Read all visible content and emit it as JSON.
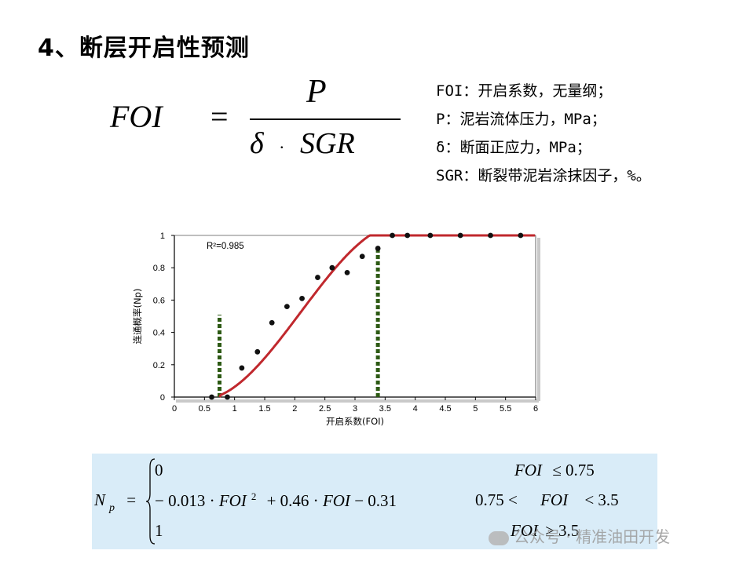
{
  "title": "4、断层开启性预测",
  "formula": {
    "lhs": "FOI",
    "equals": "=",
    "numerator": "P",
    "denominator_delta": "δ",
    "denominator_dot": "·",
    "denominator_sgr": "SGR"
  },
  "definitions": [
    "FOI：开启系数，无量纲；",
    "P：泥岩流体压力，MPa；",
    "δ：断面正应力，MPa；",
    "SGR：断裂带泥岩涂抹因子，%。"
  ],
  "chart_data": {
    "type": "scatter",
    "xlabel": "开启系数(FOI)",
    "ylabel": "连通概率(Np)",
    "annotation": "R²=0.985",
    "xlim": [
      0,
      6
    ],
    "ylim": [
      0,
      1
    ],
    "xticks": [
      "0",
      "0.5",
      "1",
      "1.5",
      "2",
      "2.5",
      "3",
      "3.5",
      "4",
      "4.5",
      "5",
      "5.5",
      "6"
    ],
    "yticks": [
      "0",
      "0.2",
      "0.4",
      "0.6",
      "0.8",
      "1"
    ],
    "points": [
      {
        "x": 0.62,
        "y": 0
      },
      {
        "x": 0.88,
        "y": 0
      },
      {
        "x": 1.12,
        "y": 0.18
      },
      {
        "x": 1.38,
        "y": 0.28
      },
      {
        "x": 1.62,
        "y": 0.46
      },
      {
        "x": 1.87,
        "y": 0.56
      },
      {
        "x": 2.12,
        "y": 0.61
      },
      {
        "x": 2.38,
        "y": 0.74
      },
      {
        "x": 2.62,
        "y": 0.8
      },
      {
        "x": 2.87,
        "y": 0.77
      },
      {
        "x": 3.12,
        "y": 0.87
      },
      {
        "x": 3.38,
        "y": 0.92
      },
      {
        "x": 3.62,
        "y": 1.0
      },
      {
        "x": 3.87,
        "y": 1.0
      },
      {
        "x": 4.25,
        "y": 1.0
      },
      {
        "x": 4.75,
        "y": 1.0
      },
      {
        "x": 5.25,
        "y": 1.0
      },
      {
        "x": 5.75,
        "y": 1.0
      }
    ],
    "thresholds": [
      {
        "x": 0.75,
        "y_top": 0.51
      },
      {
        "x": 3.38,
        "y_top": 0.93
      }
    ],
    "curve_color": "#c0282d",
    "point_color": "#111111",
    "threshold_color": "#2d5a14"
  },
  "conditions": {
    "lhs_N": "N",
    "lhs_sub": "p",
    "lhs_eq": "=",
    "case1_value": "0",
    "case1_cond_var": "FOI",
    "case1_cond": "≤ 0.75",
    "case2_value_prefix": "− 0.013 ·",
    "case2_var1": "FOI",
    "case2_exp": "2",
    "case2_value_mid": "+ 0.46 ·",
    "case2_var2": "FOI",
    "case2_value_suffix": "− 0.31",
    "case2_cond_left": "0.75 <",
    "case2_cond_var": "FOI",
    "case2_cond_right": "< 3.5",
    "case3_value": "1",
    "case3_cond_var": "FOI",
    "case3_cond": "≥ 3.5"
  },
  "watermark": "公众号 · 精准油田开发"
}
